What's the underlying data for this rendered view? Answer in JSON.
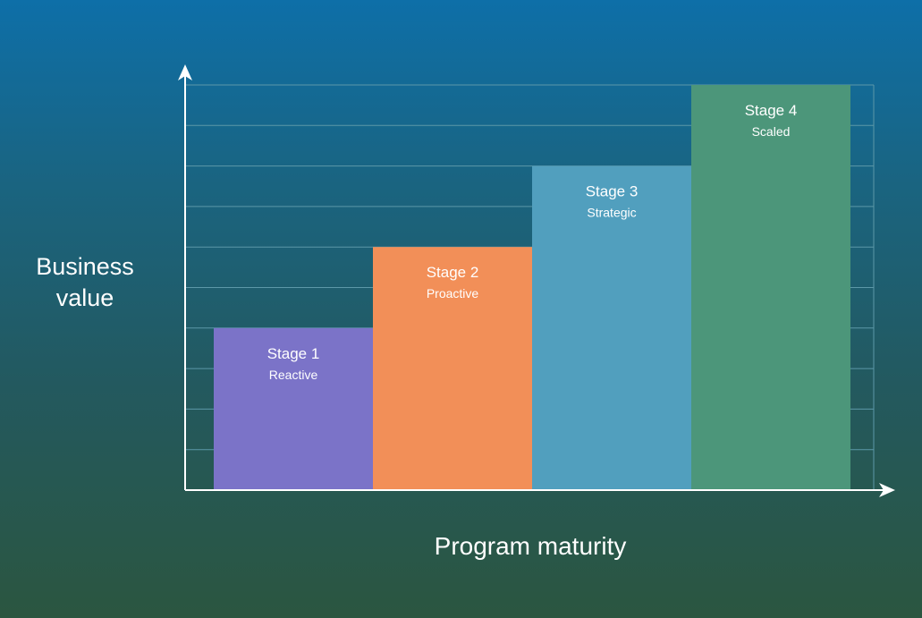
{
  "chart_data": {
    "type": "bar",
    "xlabel": "Program maturity",
    "ylabel_lines": [
      "Business",
      "value"
    ],
    "categories": [
      "Stage 1",
      "Stage 2",
      "Stage 3",
      "Stage 4"
    ],
    "subtitles": [
      "Reactive",
      "Proactive",
      "Strategic",
      "Scaled"
    ],
    "values": [
      4,
      6,
      8,
      10
    ],
    "ylim": [
      0,
      10
    ],
    "grid": true,
    "colors": [
      "#7b73c8",
      "#f28f58",
      "#519fbe",
      "#4c967a"
    ],
    "grid_color": "#5c98a8",
    "axis_color": "#ffffff"
  }
}
